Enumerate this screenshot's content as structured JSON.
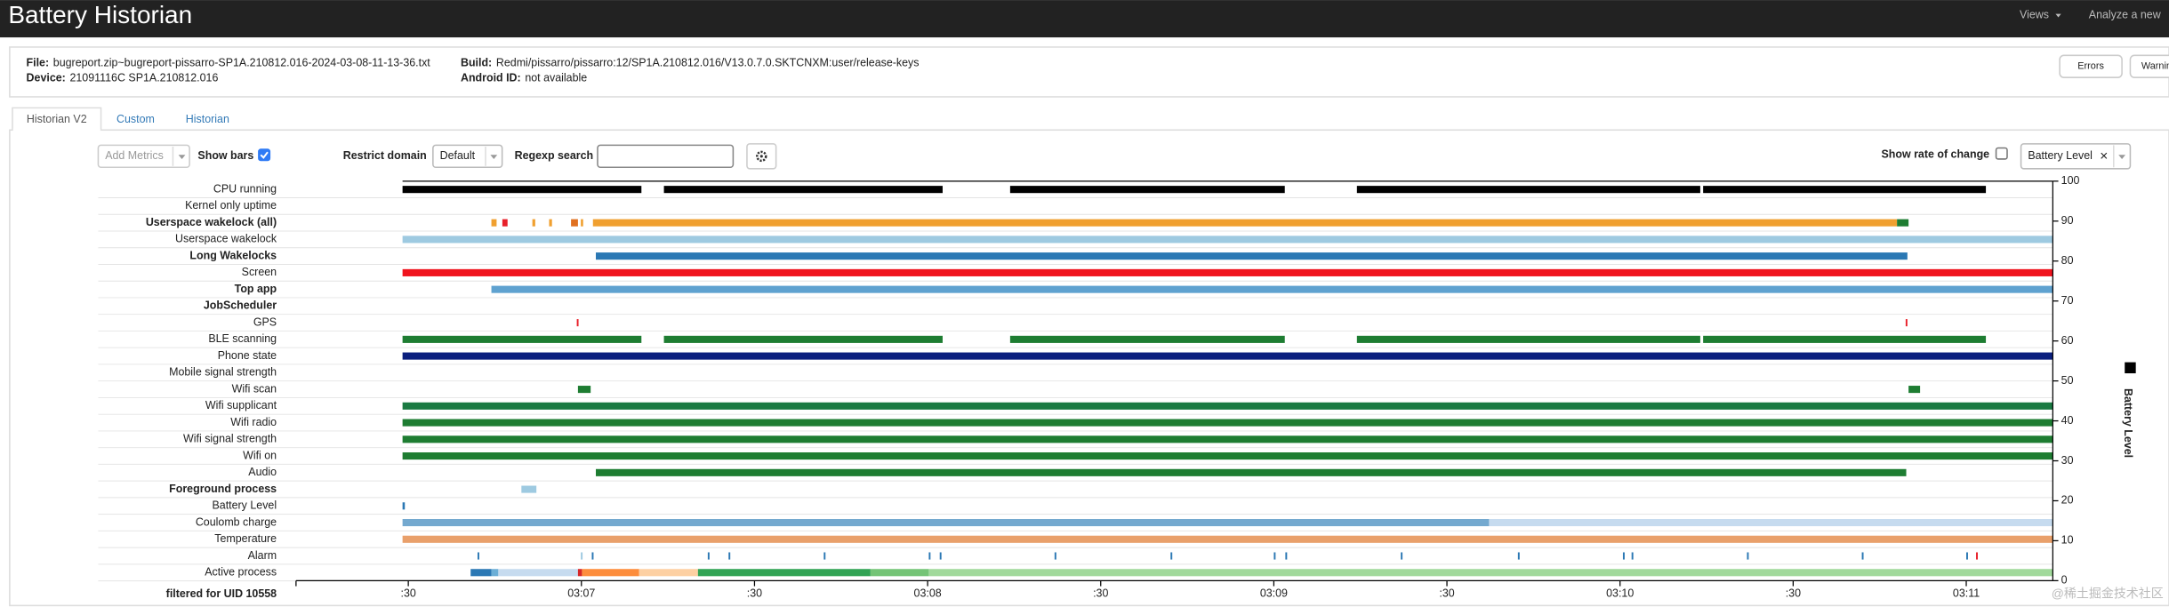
{
  "header": {
    "title": "Battery Historian",
    "nav": [
      "Views",
      "Analyze a new"
    ]
  },
  "info": {
    "file_label": "File:",
    "file": "bugreport.zip~bugreport-pissarro-SP1A.210812.016-2024-03-08-11-13-36.txt",
    "device_label": "Device:",
    "device": "21091116C SP1A.210812.016",
    "build_label": "Build:",
    "build": "Redmi/pissarro/pissarro:12/SP1A.210812.016/V13.0.7.0.SKTCNXM:user/release-keys",
    "android_id_label": "Android ID:",
    "android_id": "not available"
  },
  "buttons": [
    "Errors",
    "Warnin"
  ],
  "tabs": [
    "Historian V2",
    "Custom",
    "Historian"
  ],
  "controls": {
    "add_metrics": "Add Metrics",
    "show_bars": "Show bars",
    "show_bars_checked": true,
    "restrict_domain": "Restrict domain",
    "domain": "Default",
    "regexp_search": "Regexp search",
    "show_rate": "Show rate of change",
    "show_rate_checked": false,
    "metric": "Battery Level",
    "clear": "×"
  },
  "timeline": {
    "xlim": [
      -1,
      285
    ],
    "xticks": [
      {
        "value": 0,
        "label": ":30"
      },
      {
        "value": 30,
        "label": "03:07"
      },
      {
        "value": 60,
        "label": ":30"
      },
      {
        "value": 90,
        "label": "03:08"
      },
      {
        "value": 120,
        "label": ":30"
      },
      {
        "value": 150,
        "label": "03:09"
      },
      {
        "value": 180,
        "label": ":30"
      },
      {
        "value": 210,
        "label": "03:10"
      },
      {
        "value": 240,
        "label": ":30"
      },
      {
        "value": 270,
        "label": "03:11"
      }
    ],
    "ylim": [
      0,
      100
    ],
    "yticks": [
      0,
      10,
      20,
      30,
      40,
      50,
      60,
      70,
      80,
      90,
      100
    ],
    "y_label": "Battery Level",
    "legend_color": "#000000",
    "rows": [
      {
        "name": "CPU running",
        "bold": false,
        "color": "#000000",
        "segments": [
          [
            -1,
            40.4
          ],
          [
            44.3,
            92.6
          ],
          [
            104.3,
            151.9
          ],
          [
            164.4,
            223.9
          ],
          [
            224.4,
            273.4
          ]
        ]
      },
      {
        "name": "Kernel only uptime",
        "bold": false,
        "color": "#000000",
        "segments": []
      },
      {
        "name": "Userspace wakelock (all)",
        "bold": true,
        "color": "#f0a030",
        "segments": [
          [
            14.4,
            15.3
          ],
          [
            16.3,
            17.2
          ],
          [
            21.5,
            22
          ],
          [
            24.4,
            24.9
          ],
          [
            28.2,
            29.4
          ],
          [
            29.9,
            30.3
          ],
          [
            32,
            258
          ],
          [
            258,
            260
          ]
        ],
        "colors": [
          "#f0a030",
          "#e8202a",
          "#f0a030",
          "#f0a030",
          "#e07020",
          "#f0a030",
          "#f0a030",
          "#1e7d32"
        ]
      },
      {
        "name": "Userspace wakelock",
        "bold": false,
        "color": "#9ecae1",
        "segments": [
          [
            -1,
            285
          ]
        ]
      },
      {
        "name": "Long Wakelocks",
        "bold": true,
        "color": "#2b78b4",
        "segments": [
          [
            32.5,
            259.8
          ]
        ]
      },
      {
        "name": "Screen",
        "bold": false,
        "color": "#f0141e",
        "segments": [
          [
            -1,
            285
          ]
        ]
      },
      {
        "name": "Top app",
        "bold": true,
        "color": "#5fa2d0",
        "segments": [
          [
            14.4,
            285
          ]
        ]
      },
      {
        "name": "JobScheduler",
        "bold": true,
        "color": "#5fa2d0",
        "segments": []
      },
      {
        "name": "GPS",
        "bold": false,
        "color": "#e8202a",
        "segments": [
          [
            29.2,
            29.5
          ],
          [
            259.5,
            259.8
          ]
        ]
      },
      {
        "name": "BLE scanning",
        "bold": false,
        "color": "#1e7d32",
        "segments": [
          [
            -1,
            40.4
          ],
          [
            44.3,
            92.6
          ],
          [
            104.3,
            151.9
          ],
          [
            164.4,
            223.9
          ],
          [
            224.4,
            273.4
          ]
        ]
      },
      {
        "name": "Phone state",
        "bold": false,
        "color": "#0b1f7e",
        "segments": [
          [
            -1,
            285
          ]
        ]
      },
      {
        "name": "Mobile signal strength",
        "bold": false,
        "color": "#1e7d32",
        "segments": []
      },
      {
        "name": "Wifi scan",
        "bold": false,
        "color": "#1e7d32",
        "segments": [
          [
            29.4,
            31.6
          ],
          [
            260,
            262
          ]
        ]
      },
      {
        "name": "Wifi supplicant",
        "bold": false,
        "color": "#1a7a42",
        "segments": [
          [
            -1,
            285
          ]
        ]
      },
      {
        "name": "Wifi radio",
        "bold": false,
        "color": "#1e7d32",
        "segments": [
          [
            -1,
            285
          ]
        ]
      },
      {
        "name": "Wifi signal strength",
        "bold": false,
        "color": "#1e7d32",
        "segments": [
          [
            -1,
            285
          ]
        ]
      },
      {
        "name": "Wifi on",
        "bold": false,
        "color": "#1e7d32",
        "segments": [
          [
            -1,
            285
          ]
        ]
      },
      {
        "name": "Audio",
        "bold": false,
        "color": "#1e7d32",
        "segments": [
          [
            32.5,
            259.6
          ]
        ]
      },
      {
        "name": "Foreground process",
        "bold": true,
        "color": "#9ecae1",
        "segments": [
          [
            19.6,
            22.2
          ]
        ]
      },
      {
        "name": "Battery Level",
        "bold": false,
        "color": "#2b78b4",
        "segments": [
          [
            -1,
            -0.6
          ]
        ]
      },
      {
        "name": "Coulomb charge",
        "bold": false,
        "color": "#74a9cf",
        "segments": [
          [
            -1,
            187.3
          ],
          [
            187.3,
            285
          ]
        ],
        "colors": [
          "#74a9cf",
          "#c6dbef"
        ]
      },
      {
        "name": "Temperature",
        "bold": false,
        "color": "#e9a06b",
        "segments": [
          [
            -1,
            285
          ]
        ]
      },
      {
        "name": "Alarm",
        "bold": false,
        "color": "#2b78b4",
        "segments": [
          [
            12,
            12.3
          ],
          [
            29.9,
            30.2
          ],
          [
            31.8,
            32.1
          ],
          [
            51.9,
            52.2
          ],
          [
            55.5,
            55.8
          ],
          [
            72,
            72.3
          ],
          [
            90.2,
            90.5
          ],
          [
            92.1,
            92.4
          ],
          [
            112,
            112.3
          ],
          [
            132.1,
            132.4
          ],
          [
            150,
            150.3
          ],
          [
            152,
            152.3
          ],
          [
            172,
            172.3
          ],
          [
            192.3,
            192.6
          ],
          [
            210.5,
            210.8
          ],
          [
            212,
            212.3
          ],
          [
            232,
            232.3
          ],
          [
            251.9,
            252.2
          ],
          [
            270,
            270.3
          ],
          [
            271.7,
            272
          ]
        ],
        "colors": [
          "#2b78b4",
          "#9ecae1",
          "#2b78b4",
          "#2b78b4",
          "#2b78b4",
          "#2b78b4",
          "#2b78b4",
          "#2b78b4",
          "#2b78b4",
          "#2b78b4",
          "#2b78b4",
          "#2b78b4",
          "#2b78b4",
          "#2b78b4",
          "#2b78b4",
          "#2b78b4",
          "#2b78b4",
          "#2b78b4",
          "#2b78b4",
          "#e8202a"
        ]
      },
      {
        "name": "Active process",
        "bold": false,
        "color": "#a1d99b",
        "segments": [
          [
            10.8,
            14.4
          ],
          [
            14.4,
            15.6
          ],
          [
            15.6,
            29.4
          ],
          [
            29.4,
            30.1
          ],
          [
            30.1,
            40
          ],
          [
            40,
            50.2
          ],
          [
            50.2,
            80.1
          ],
          [
            80.1,
            90.2
          ],
          [
            90.2,
            285
          ]
        ],
        "colors": [
          "#2b78b4",
          "#6baed6",
          "#c6dbef",
          "#d62728",
          "#fd8d3c",
          "#fdd0a2",
          "#31a354",
          "#74c476",
          "#a1d99b"
        ]
      }
    ],
    "filter": "filtered for UID 10558"
  },
  "watermark": "@稀土掘金技术社区"
}
